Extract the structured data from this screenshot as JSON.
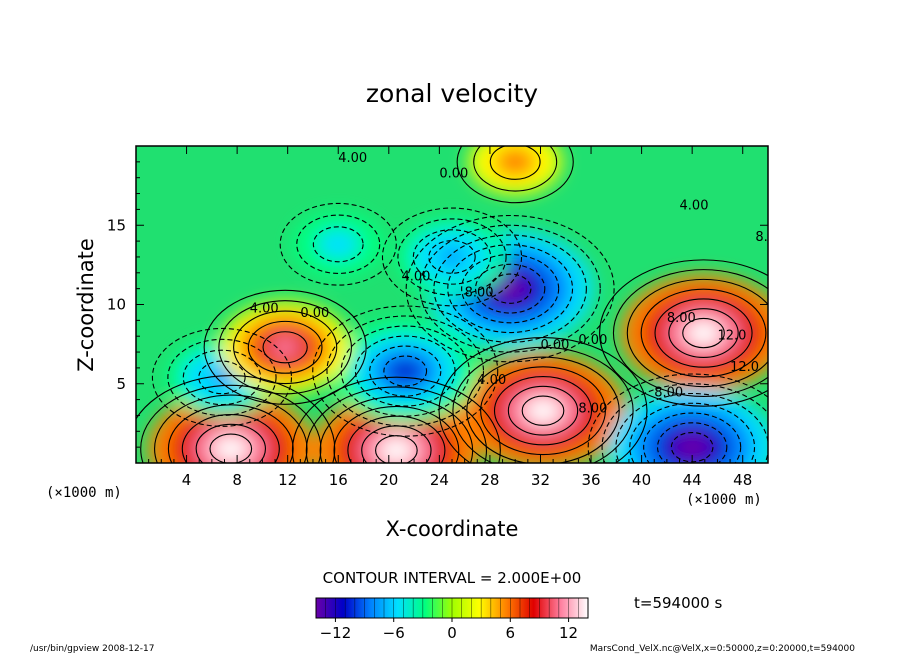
{
  "chart_data": {
    "type": "heatmap",
    "title": "zonal velocity",
    "xlabel": "X-coordinate",
    "ylabel": "Z-coordinate",
    "x_unit": "(×1000 m)",
    "y_unit": "(×1000 m)",
    "xlim": [
      0,
      50
    ],
    "ylim": [
      0,
      20
    ],
    "x_ticks": [
      "4",
      "8",
      "12",
      "16",
      "20",
      "24",
      "28",
      "32",
      "36",
      "40",
      "44",
      "48"
    ],
    "y_ticks": [
      "5",
      "10",
      "15"
    ],
    "contour_interval": "CONTOUR INTERVAL = 2.000E+00",
    "time": "t=594000 s",
    "colorbar": {
      "ticks": [
        "−12",
        "−6",
        "0",
        "6",
        "12"
      ],
      "range": [
        -14,
        14
      ],
      "colors": [
        "#6a00a8",
        "#0000c8",
        "#0080ff",
        "#00e0ff",
        "#00ff80",
        "#a0ff00",
        "#ffff00",
        "#ff8000",
        "#e00000",
        "#ff80a0",
        "#ffffff"
      ]
    },
    "contour_labels": [
      "4.00",
      "0.00",
      "0.00",
      "4.00",
      "8.00",
      "4.00",
      "8.00",
      "4.00",
      "0.00",
      "0.00",
      "8.00",
      "12.0",
      "8.00",
      "12.0",
      "4.00",
      "0.00",
      "8.00"
    ],
    "features": [
      {
        "x": 29.6,
        "z": 11.0,
        "value": -14
      },
      {
        "x": 44.9,
        "z": 8.2,
        "value": 14
      },
      {
        "x": 32.2,
        "z": 3.3,
        "value": 14
      },
      {
        "x": 7.5,
        "z": 0.9,
        "value": 14
      },
      {
        "x": 20.6,
        "z": 0.8,
        "value": 14
      },
      {
        "x": 44.0,
        "z": 1.0,
        "value": -14
      },
      {
        "x": 21.3,
        "z": 5.8,
        "value": -12
      },
      {
        "x": 6.8,
        "z": 5.4,
        "value": -8
      },
      {
        "x": 11.8,
        "z": 7.3,
        "value": 10
      },
      {
        "x": 16.0,
        "z": 13.8,
        "value": -6
      },
      {
        "x": 25.0,
        "z": 13.0,
        "value": -8
      },
      {
        "x": 30.0,
        "z": 19.0,
        "value": 6
      }
    ]
  },
  "footer": {
    "left": "/usr/bin/gpview   2008-12-17",
    "right": "MarsCond_VelX.nc@VelX,x=0:50000,z=0:20000,t=594000"
  }
}
